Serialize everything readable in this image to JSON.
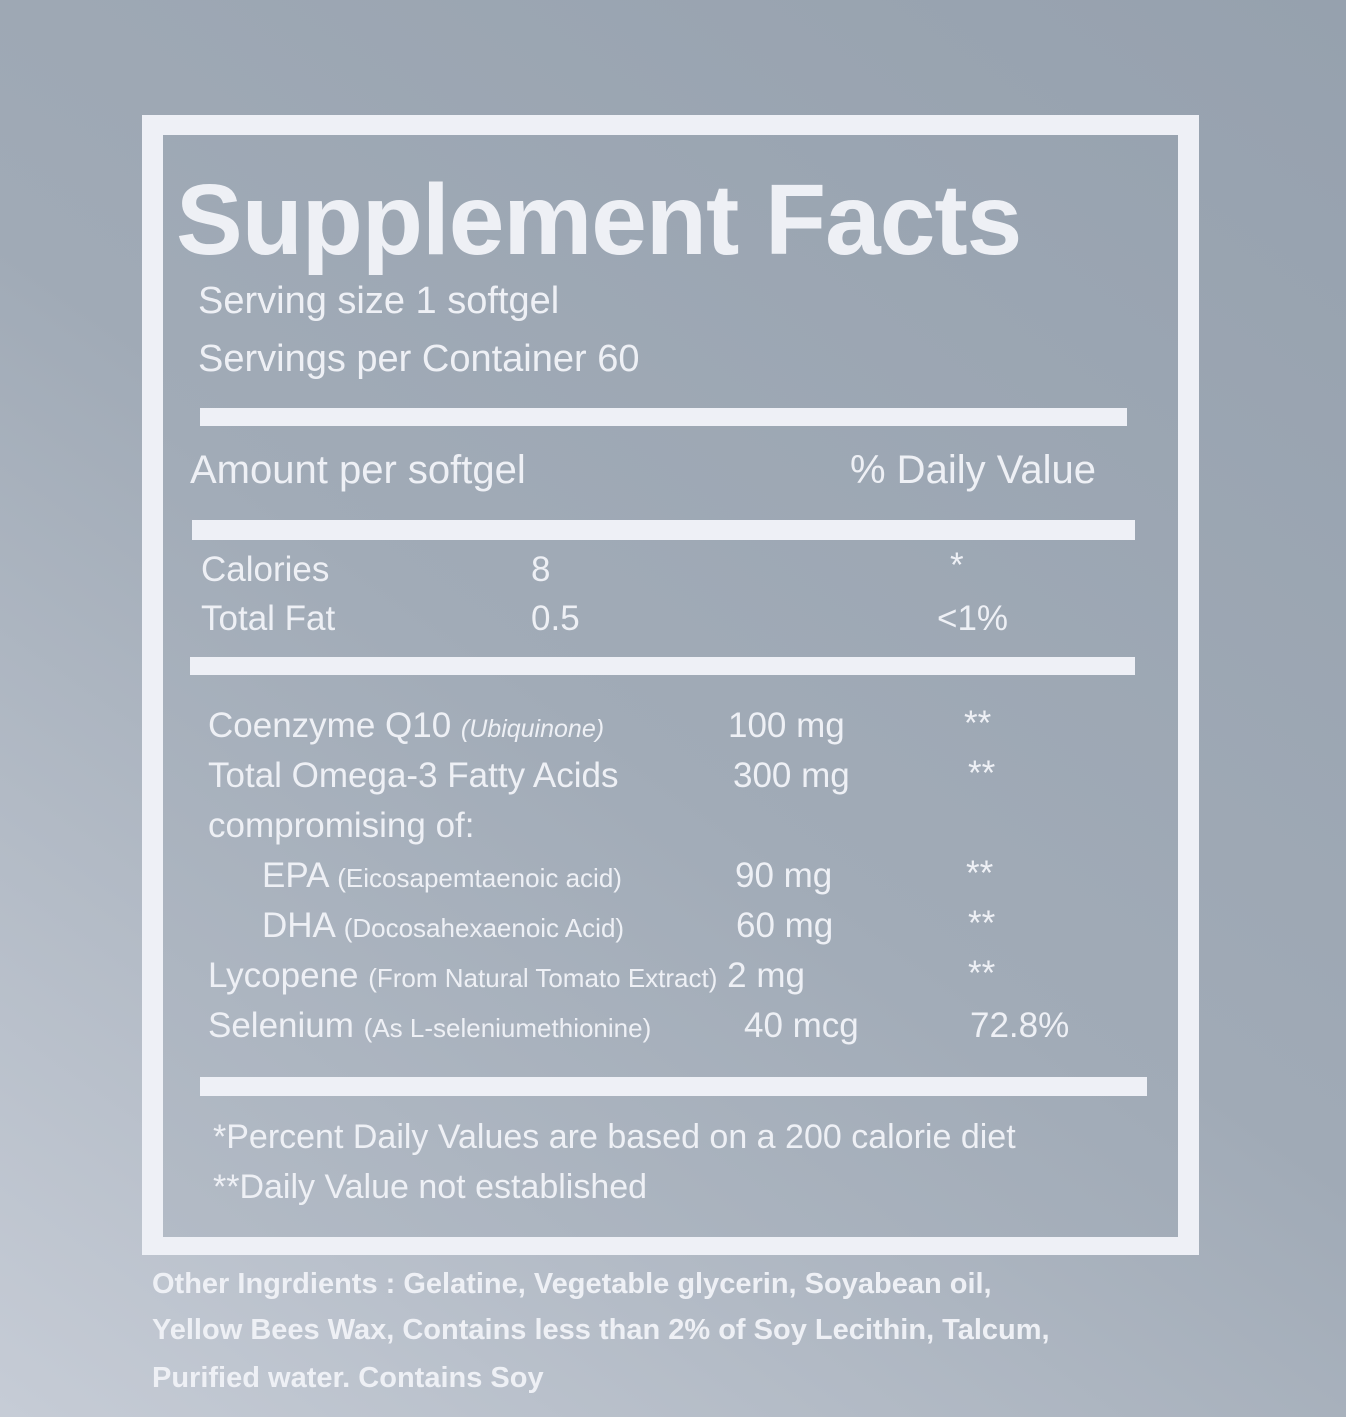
{
  "title": "Supplement Facts",
  "serving_size": "Serving size 1 softgel",
  "servings_per_container": "Servings per Container 60",
  "header": {
    "amount": "Amount per softgel",
    "daily_value": "% Daily  Value"
  },
  "basic_rows": [
    {
      "name": "Calories",
      "amount": "8",
      "dv": "*"
    },
    {
      "name": "Total Fat",
      "amount": "0.5",
      "dv": "<1%"
    }
  ],
  "nutrient_rows": [
    {
      "name": "Coenzyme Q10",
      "note": "(Ubiquinone)",
      "amount": "100 mg",
      "dv": "**"
    },
    {
      "name": "Total Omega-3 Fatty Acids",
      "note": "",
      "amount": "300 mg",
      "dv": "**"
    },
    {
      "name": "compromising of:",
      "note": "",
      "amount": "",
      "dv": ""
    },
    {
      "name": "EPA",
      "note": "(Eicosapemtaenoic acid)",
      "amount": "90 mg",
      "dv": "**"
    },
    {
      "name": "DHA",
      "note": "(Docosahexaenoic Acid)",
      "amount": "60 mg",
      "dv": "**"
    },
    {
      "name": "Lycopene",
      "note": "(From Natural Tomato Extract)",
      "amount": "2 mg",
      "dv": "**"
    },
    {
      "name": "Selenium",
      "note": "(As L-seleniumethionine)",
      "amount": "40 mcg",
      "dv": "72.8%"
    }
  ],
  "footnotes": [
    "*Percent Daily Values are based on a 200 calorie diet",
    "**Daily Value not established"
  ],
  "other_ingredients": [
    "Other Ingrdients : Gelatine, Vegetable glycerin, Soyabean oil,",
    "Yellow Bees Wax, Contains less than 2% of Soy Lecithin, Talcum,",
    "Purified water. Contains Soy"
  ],
  "colors": {
    "text": "#eef0f5",
    "background": "#a0aab6"
  }
}
